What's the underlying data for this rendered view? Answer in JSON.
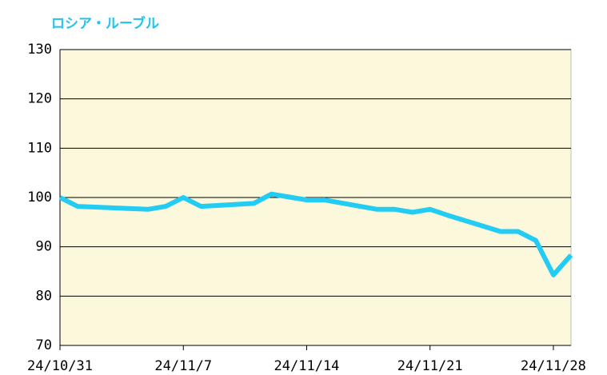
{
  "chart_data": {
    "type": "line",
    "title": "ロシア・ルーブル",
    "x": [
      "24/10/31",
      "24/11/1",
      "24/11/5",
      "24/11/6",
      "24/11/7",
      "24/11/8",
      "24/11/11",
      "24/11/12",
      "24/11/13",
      "24/11/14",
      "24/11/15",
      "24/11/18",
      "24/11/19",
      "24/11/20",
      "24/11/21",
      "24/11/22",
      "24/11/25",
      "24/11/26",
      "24/11/27",
      "24/11/28",
      "24/11/29"
    ],
    "series": [
      {
        "name": "ロシア・ルーブル",
        "color": "#22ccf2",
        "values": [
          100,
          98.2,
          97.6,
          98.2,
          100,
          98.2,
          98.8,
          100.7,
          100.1,
          99.5,
          99.5,
          97.6,
          97.6,
          97.0,
          97.6,
          96.4,
          93.1,
          93.1,
          91.3,
          84.3,
          88.3
        ]
      }
    ],
    "xlim": [
      "24/10/31",
      "24/11/29"
    ],
    "xticks": [
      "24/10/31",
      "24/11/7",
      "24/11/14",
      "24/11/21",
      "24/11/28"
    ],
    "ylim": [
      70,
      130
    ],
    "yticks": [
      70,
      80,
      90,
      100,
      110,
      120,
      130
    ],
    "grid": true,
    "plot_background": "#fbf8dc"
  }
}
